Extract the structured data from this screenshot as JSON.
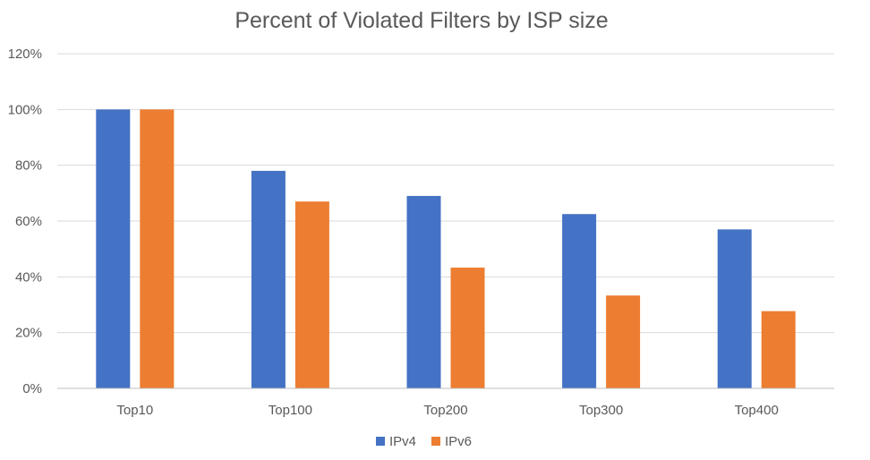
{
  "chart_data": {
    "type": "bar",
    "title": "Percent of Violated Filters by ISP size",
    "categories": [
      "Top10",
      "Top100",
      "Top200",
      "Top300",
      "Top400"
    ],
    "series": [
      {
        "name": "IPv4",
        "color": "#4472C4",
        "values": [
          100,
          78,
          69,
          62.5,
          57
        ]
      },
      {
        "name": "IPv6",
        "color": "#ED7D31",
        "values": [
          100,
          67,
          43.3,
          33.3,
          27.7
        ]
      }
    ],
    "ylim": [
      0,
      120
    ],
    "yticks": [
      "0%",
      "20%",
      "40%",
      "60%",
      "80%",
      "100%",
      "120%"
    ],
    "grid": true,
    "legend": "bottom"
  }
}
